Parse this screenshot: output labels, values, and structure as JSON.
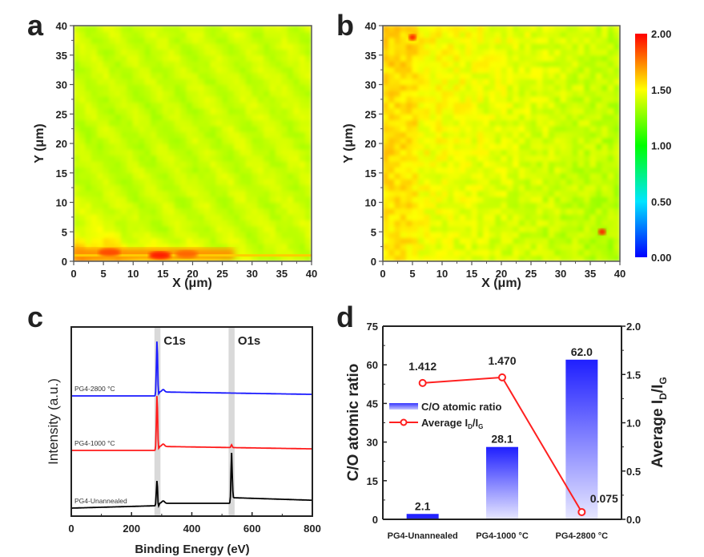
{
  "chart_data": [
    {
      "panel": "a",
      "type": "heatmap",
      "title": "",
      "xlabel": "X (μm)",
      "ylabel": "Y (μm)",
      "xlim": [
        0,
        40
      ],
      "ylim": [
        0,
        40
      ],
      "xticks": [
        "0",
        "5",
        "10",
        "15",
        "20",
        "25",
        "30",
        "35",
        "40"
      ],
      "yticks": [
        "0",
        "5",
        "10",
        "15",
        "20",
        "25",
        "30",
        "35",
        "40"
      ],
      "value_range": [
        0.0,
        2.0
      ],
      "description": "Mostly uniform ~1.40 (yellow-green) with a high band (~1.7-1.9, orange-red) along Y≈0-3 μm for X≈0-27 μm",
      "background_value": 1.4,
      "hotspots": [
        {
          "x": 6,
          "y": 1.5,
          "value": 1.85
        },
        {
          "x": 14.5,
          "y": 1,
          "value": 1.95
        },
        {
          "x": 19,
          "y": 1.2,
          "value": 1.8
        }
      ]
    },
    {
      "panel": "b",
      "type": "heatmap",
      "title": "",
      "xlabel": "X (μm)",
      "ylabel": "Y (μm)",
      "xlim": [
        0,
        40
      ],
      "ylim": [
        0,
        40
      ],
      "xticks": [
        "0",
        "5",
        "10",
        "15",
        "20",
        "25",
        "30",
        "35",
        "40"
      ],
      "yticks": [
        "0",
        "5",
        "10",
        "15",
        "20",
        "25",
        "30",
        "35",
        "40"
      ],
      "value_range": [
        0.0,
        2.0
      ],
      "description": "Mottled ~1.45-1.6 (yellow-orange) on left, ~1.40 (yellow-green) on right; two red spots",
      "background_value": 1.47,
      "hotspots": [
        {
          "x": 5,
          "y": 38,
          "value": 1.95
        },
        {
          "x": 37,
          "y": 5,
          "value": 1.95
        }
      ],
      "colorbar": {
        "ticks": [
          "0.00",
          "0.50",
          "1.00",
          "1.50",
          "2.00"
        ],
        "range": [
          0.0,
          2.0
        ],
        "colormap": [
          "#0000ff",
          "#00e5ff",
          "#00ff00",
          "#ffff00",
          "#ff0000"
        ]
      }
    },
    {
      "panel": "c",
      "type": "line",
      "title": "",
      "xlabel": "Binding Energy (eV)",
      "ylabel": "Intensity (a.u.)",
      "xlim": [
        0,
        800
      ],
      "xticks": [
        "0",
        "200",
        "400",
        "600",
        "800"
      ],
      "shaded_regions": [
        {
          "label": "C1s",
          "from": 276,
          "to": 296
        },
        {
          "label": "O1s",
          "from": 522,
          "to": 542
        }
      ],
      "series": [
        {
          "name": "PG4-2800 °C",
          "color": "#1a1aff",
          "offset": 2,
          "peaks": [
            {
              "x": 284.5,
              "height": 1.0
            }
          ],
          "baseline": 0.0
        },
        {
          "name": "PG4-1000 °C",
          "color": "#ff1a1a",
          "offset": 1,
          "peaks": [
            {
              "x": 284.5,
              "height": 1.0
            },
            {
              "x": 532,
              "height": 0.05
            }
          ],
          "baseline": 0.0
        },
        {
          "name": "PG4-Unannealed",
          "color": "#000000",
          "offset": 0,
          "peaks": [
            {
              "x": 284.5,
              "height": 0.5
            },
            {
              "x": 532,
              "height": 0.9
            }
          ],
          "baseline": 0.0
        }
      ]
    },
    {
      "panel": "d",
      "type": "bar",
      "title": "",
      "categories": [
        "PG4-Unannealed",
        "PG4-1000 °C",
        "PG4-2800 °C"
      ],
      "ylabel": "C/O atomic ratio",
      "y2label": "Average ID/IG",
      "ylim": [
        0,
        75
      ],
      "y2lim": [
        0,
        2.0
      ],
      "yticks": [
        "0",
        "15",
        "30",
        "45",
        "60",
        "75"
      ],
      "y2ticks": [
        "0.0",
        "0.5",
        "1.0",
        "1.5",
        "2.0"
      ],
      "series": [
        {
          "name": "C/O atomic ratio",
          "type": "bar",
          "axis": "left",
          "color": "#1f1fff",
          "values": [
            2.1,
            28.1,
            62.0
          ],
          "labels": [
            "2.1",
            "28.1",
            "62.0"
          ]
        },
        {
          "name": "Average ID/IG",
          "type": "line",
          "axis": "right",
          "color": "#ff2020",
          "values": [
            1.412,
            1.47,
            0.075
          ],
          "labels": [
            "1.412",
            "1.470",
            "0.075"
          ]
        }
      ],
      "legend": {
        "placement": "center-left",
        "entries": [
          {
            "label": "C/O atomic ratio",
            "sub": ""
          },
          {
            "label": "Average I",
            "sub1": "D",
            "mid": "/I",
            "sub2": "G"
          }
        ]
      }
    }
  ],
  "panel_labels": [
    "a",
    "b",
    "c",
    "d"
  ]
}
